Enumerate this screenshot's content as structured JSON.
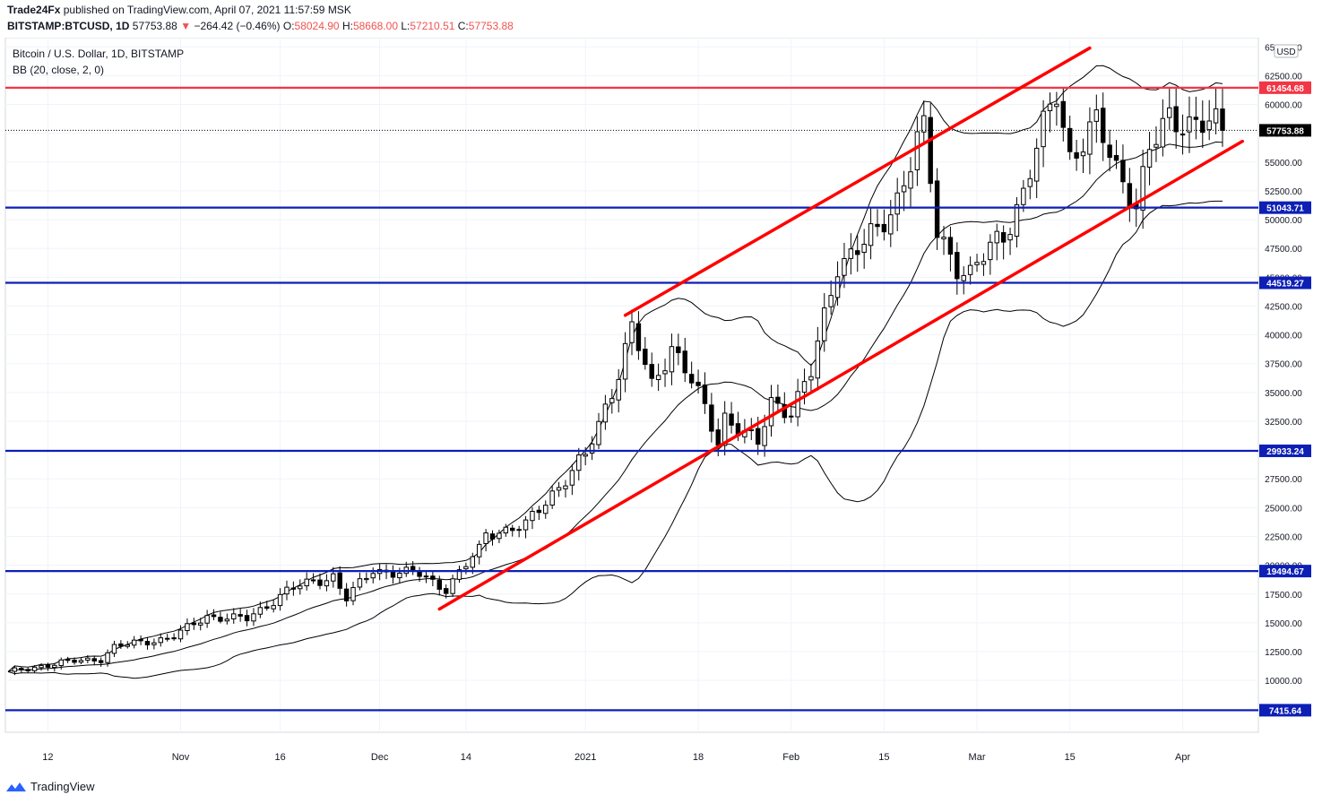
{
  "header": {
    "publisher": "Trade24Fx",
    "published_text": "published on TradingView.com, April 07, 2021 11:57:59 MSK",
    "symbol": "BITSTAMP:BTCUSD, 1D",
    "last_price": "57753.88",
    "arrow": "▼",
    "change": "−264.42 (−0.46%)",
    "o_label": "O:",
    "o_value": "58024.90",
    "h_label": "H:",
    "h_value": "58668.00",
    "l_label": "L:",
    "l_value": "57210.51",
    "c_label": "C:",
    "c_value": "57753.88"
  },
  "legend": {
    "title": "Bitcoin / U.S. Dollar, 1D, BITSTAMP",
    "indicator": "BB (20, close, 2, 0)"
  },
  "currency_badge": "USD",
  "footer": {
    "brand": "TradingView"
  },
  "colors": {
    "support": "#0d1fb5",
    "resistance": "#f23645",
    "channel": "#ff0000",
    "up_candle": "#ffffff",
    "down_candle": "#000000"
  },
  "chart_data": {
    "type": "candlestick",
    "title": "Bitcoin / U.S. Dollar, 1D, BITSTAMP",
    "ylim": [
      5500,
      65800
    ],
    "y_scale": "linear",
    "y_ticks": [
      "10000.00",
      "12500.00",
      "15000.00",
      "17500.00",
      "20000.00",
      "22500.00",
      "25000.00",
      "27500.00",
      "30000.00",
      "32500.00",
      "35000.00",
      "37500.00",
      "40000.00",
      "42500.00",
      "45000.00",
      "47500.00",
      "50000.00",
      "52500.00",
      "55000.00",
      "57500.00",
      "60000.00",
      "62500.00",
      "65000.00"
    ],
    "x_ticks": [
      {
        "label": "12",
        "date": "2020-10-12"
      },
      {
        "label": "Nov",
        "date": "2020-11-01"
      },
      {
        "label": "16",
        "date": "2020-11-16"
      },
      {
        "label": "Dec",
        "date": "2020-12-01"
      },
      {
        "label": "14",
        "date": "2020-12-14"
      },
      {
        "label": "2021",
        "date": "2021-01-01"
      },
      {
        "label": "18",
        "date": "2021-01-18"
      },
      {
        "label": "Feb",
        "date": "2021-02-01"
      },
      {
        "label": "15",
        "date": "2021-02-15"
      },
      {
        "label": "Mar",
        "date": "2021-03-01"
      },
      {
        "label": "15",
        "date": "2021-03-15"
      },
      {
        "label": "Apr",
        "date": "2021-04-01"
      }
    ],
    "date_range": [
      "2020-10-06",
      "2021-04-07"
    ],
    "close_series_anchors": [
      [
        "2020-10-06",
        10650
      ],
      [
        "2020-10-12",
        11400
      ],
      [
        "2020-10-20",
        11900
      ],
      [
        "2020-10-22",
        12900
      ],
      [
        "2020-10-31",
        13800
      ],
      [
        "2020-11-05",
        15600
      ],
      [
        "2020-11-11",
        15300
      ],
      [
        "2020-11-17",
        17800
      ],
      [
        "2020-11-24",
        19100
      ],
      [
        "2020-11-26",
        17100
      ],
      [
        "2020-11-30",
        19600
      ],
      [
        "2020-12-07",
        19200
      ],
      [
        "2020-12-11",
        18000
      ],
      [
        "2020-12-16",
        21300
      ],
      [
        "2020-12-17",
        22800
      ],
      [
        "2020-12-21",
        23200
      ],
      [
        "2020-12-23",
        23400
      ],
      [
        "2020-12-27",
        26300
      ],
      [
        "2021-01-01",
        29400
      ],
      [
        "2021-01-03",
        32200
      ],
      [
        "2021-01-06",
        36900
      ],
      [
        "2021-01-08",
        40600
      ],
      [
        "2021-01-11",
        35400
      ],
      [
        "2021-01-14",
        39200
      ],
      [
        "2021-01-17",
        36000
      ],
      [
        "2021-01-21",
        30800
      ],
      [
        "2021-01-22",
        33000
      ],
      [
        "2021-01-27",
        30400
      ],
      [
        "2021-01-29",
        34200
      ],
      [
        "2021-02-01",
        33500
      ],
      [
        "2021-02-04",
        36600
      ],
      [
        "2021-02-08",
        46300
      ],
      [
        "2021-02-14",
        48700
      ],
      [
        "2021-02-17",
        52000
      ],
      [
        "2021-02-20",
        56900
      ],
      [
        "2021-02-21",
        57500
      ],
      [
        "2021-02-23",
        48800
      ],
      [
        "2021-02-26",
        46200
      ],
      [
        "2021-02-28",
        45200
      ],
      [
        "2021-03-05",
        48800
      ],
      [
        "2021-03-08",
        52400
      ],
      [
        "2021-03-10",
        56000
      ],
      [
        "2021-03-13",
        61200
      ],
      [
        "2021-03-15",
        55600
      ],
      [
        "2021-03-19",
        58100
      ],
      [
        "2021-03-22",
        54500
      ],
      [
        "2021-03-24",
        52700
      ],
      [
        "2021-03-25",
        51300
      ],
      [
        "2021-03-27",
        55800
      ],
      [
        "2021-03-30",
        58800
      ],
      [
        "2021-04-01",
        58800
      ],
      [
        "2021-04-07",
        57753.88
      ]
    ],
    "bollinger": {
      "name": "BB (20, close, 2, 0)",
      "period": 20,
      "stddev": 2
    },
    "horizontal_levels": [
      {
        "value": 61454.68,
        "label": "61454.68",
        "color": "#f23645"
      },
      {
        "value": 51043.71,
        "label": "51043.71",
        "color": "#0d1fb5"
      },
      {
        "value": 44519.27,
        "label": "44519.27",
        "color": "#0d1fb5"
      },
      {
        "value": 29933.24,
        "label": "29933.24",
        "color": "#0d1fb5"
      },
      {
        "value": 19494.67,
        "label": "19494.67",
        "color": "#0d1fb5"
      },
      {
        "value": 7415.64,
        "label": "7415.64",
        "color": "#0d1fb5"
      }
    ],
    "current_price": {
      "value": 57753.88,
      "label": "57753.88"
    },
    "trend_channel": [
      {
        "from": {
          "date": "2021-01-07",
          "price": 41700
        },
        "to": {
          "date": "2021-03-18",
          "price": 64900
        }
      },
      {
        "from": {
          "date": "2020-12-10",
          "price": 16200
        },
        "to": {
          "date": "2021-04-10",
          "price": 56800
        }
      }
    ]
  }
}
